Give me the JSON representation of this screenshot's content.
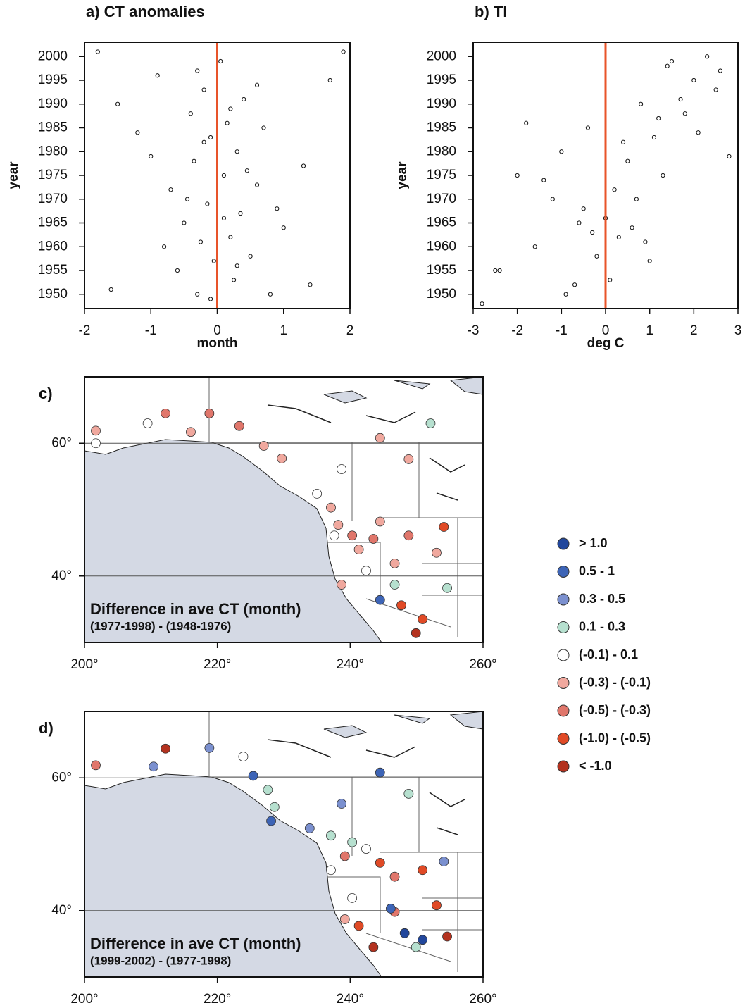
{
  "chart_data": [
    {
      "type": "scatter",
      "title": "a) CT anomalies",
      "xlabel": "month",
      "ylabel": "year",
      "xlim": [
        -2,
        2
      ],
      "ylim": [
        1947,
        2003
      ],
      "xticks": [
        -2,
        -1,
        0,
        1,
        2
      ],
      "yticks": [
        1950,
        1955,
        1960,
        1965,
        1970,
        1975,
        1980,
        1985,
        1990,
        1995,
        2000
      ],
      "ref_line": {
        "x": 0,
        "color": "#e8542a"
      },
      "x": [
        -1.8,
        -1.5,
        -1.2,
        -0.9,
        -0.7,
        -0.6,
        -0.5,
        -0.4,
        -0.35,
        -0.3,
        -0.25,
        -0.2,
        -0.15,
        -0.1,
        -0.05,
        0.05,
        0.1,
        0.15,
        0.2,
        0.25,
        0.3,
        0.35,
        0.4,
        0.5,
        0.6,
        0.7,
        0.8,
        1.0,
        1.3,
        1.7,
        -1.6,
        -1.0,
        -0.8,
        -0.45,
        -0.3,
        -0.2,
        -0.1,
        0.1,
        0.2,
        0.3,
        0.45,
        0.6,
        0.9,
        1.4,
        1.9
      ],
      "y": [
        2001,
        1990,
        1984,
        1996,
        1972,
        1955,
        1965,
        1988,
        1978,
        1950,
        1961,
        1993,
        1969,
        1983,
        1957,
        1999,
        1975,
        1986,
        1962,
        1953,
        1980,
        1967,
        1991,
        1958,
        1973,
        1985,
        1950,
        1964,
        1977,
        1995,
        1951,
        1979,
        1960,
        1970,
        1997,
        1982,
        1949,
        1966,
        1989,
        1956,
        1976,
        1994,
        1968,
        1952,
        2001
      ]
    },
    {
      "type": "scatter",
      "title": "b) TI",
      "xlabel": "deg C",
      "ylabel": "year",
      "xlim": [
        -3,
        3
      ],
      "ylim": [
        1947,
        2003
      ],
      "xticks": [
        -3,
        -2,
        -1,
        0,
        1,
        2,
        3
      ],
      "yticks": [
        1950,
        1955,
        1960,
        1965,
        1970,
        1975,
        1980,
        1985,
        1990,
        1995,
        2000
      ],
      "ref_line": {
        "x": 0,
        "color": "#e8542a"
      },
      "x": [
        -2.8,
        -2.4,
        -2.0,
        -1.6,
        -1.2,
        -0.9,
        -0.6,
        -0.4,
        -0.2,
        0.1,
        0.3,
        0.5,
        0.8,
        1.1,
        1.5,
        2.0,
        2.5,
        -2.5,
        -1.8,
        -1.0,
        -0.5,
        0.2,
        0.6,
        1.0,
        1.4,
        1.8,
        2.3,
        2.8,
        -1.4,
        -0.7,
        0.0,
        0.4,
        0.9,
        1.3,
        1.7,
        2.1,
        2.6,
        -0.3,
        0.7,
        1.2
      ],
      "y": [
        1948,
        1955,
        1975,
        1960,
        1970,
        1950,
        1965,
        1985,
        1958,
        1953,
        1962,
        1978,
        1990,
        1983,
        1999,
        1995,
        1993,
        1955,
        1986,
        1980,
        1968,
        1972,
        1964,
        1957,
        1998,
        1988,
        2000,
        1979,
        1974,
        1952,
        1966,
        1982,
        1961,
        1975,
        1991,
        1984,
        1997,
        1963,
        1970,
        1987
      ]
    },
    {
      "type": "map",
      "panel": "c)",
      "title": "Difference in ave CT (month)",
      "subtitle": "(1977-1998) - (1948-1976)",
      "xlim": [
        200,
        260
      ],
      "ylim": [
        30,
        70
      ],
      "xticks": [
        {
          "value": 200,
          "label": "200°"
        },
        {
          "value": 220,
          "label": "220°"
        },
        {
          "value": 240,
          "label": "240°"
        },
        {
          "value": 260,
          "label": "260°"
        }
      ],
      "yticks": [
        {
          "value": 40,
          "label": "40°"
        },
        {
          "value": 60,
          "label": "60°"
        }
      ],
      "x": [
        201.7,
        201.7,
        209.5,
        212.2,
        218.8,
        216.0,
        223.3,
        227.0,
        229.7,
        238.7,
        237.1,
        238.2,
        240.3,
        241.3,
        244.5,
        246.7,
        248.8,
        252.1,
        254.1,
        237.6,
        242.4,
        238.7,
        244.5,
        247.7,
        249.9,
        250.9,
        254.6,
        253.0,
        248.8,
        244.5,
        235.0,
        246.7,
        243.5
      ],
      "y": [
        61.9,
        60.0,
        63.0,
        64.5,
        64.5,
        61.7,
        62.6,
        59.6,
        57.7,
        56.1,
        50.3,
        47.7,
        46.1,
        44.0,
        48.2,
        41.9,
        57.6,
        63.0,
        47.4,
        46.1,
        40.8,
        38.7,
        36.4,
        35.6,
        31.4,
        33.5,
        38.2,
        43.5,
        46.1,
        60.8,
        52.4,
        38.7,
        45.6
      ],
      "class": [
        5,
        4,
        4,
        6,
        6,
        5,
        6,
        5,
        5,
        4,
        5,
        5,
        6,
        5,
        5,
        5,
        5,
        3,
        7,
        4,
        4,
        5,
        1,
        7,
        8,
        7,
        3,
        5,
        6,
        5,
        4,
        3,
        6
      ]
    },
    {
      "type": "map",
      "panel": "d)",
      "title": "Difference in ave CT (month)",
      "subtitle": "(1999-2002) - (1977-1998)",
      "xlim": [
        200,
        260
      ],
      "ylim": [
        30,
        70
      ],
      "xticks": [
        {
          "value": 200,
          "label": "200°"
        },
        {
          "value": 220,
          "label": "220°"
        },
        {
          "value": 240,
          "label": "240°"
        },
        {
          "value": 260,
          "label": "260°"
        }
      ],
      "yticks": [
        {
          "value": 40,
          "label": "40°"
        },
        {
          "value": 60,
          "label": "60°"
        }
      ],
      "x": [
        201.7,
        210.4,
        212.2,
        218.8,
        223.9,
        225.4,
        227.6,
        228.6,
        228.1,
        233.9,
        238.7,
        244.5,
        248.8,
        237.1,
        240.3,
        242.4,
        239.2,
        244.5,
        246.7,
        250.9,
        254.1,
        240.3,
        241.3,
        246.7,
        246.1,
        248.2,
        250.9,
        254.6,
        253.0,
        249.9,
        237.1,
        239.2,
        243.5
      ],
      "y": [
        61.9,
        61.7,
        64.4,
        64.5,
        63.2,
        60.3,
        58.2,
        55.6,
        53.5,
        52.4,
        56.1,
        60.8,
        57.6,
        51.3,
        50.3,
        49.3,
        48.2,
        47.2,
        45.1,
        46.1,
        47.4,
        41.9,
        37.7,
        39.8,
        40.3,
        36.6,
        35.6,
        36.1,
        40.8,
        34.5,
        46.1,
        38.7,
        34.5
      ],
      "class": [
        6,
        2,
        8,
        2,
        4,
        1,
        3,
        3,
        1,
        2,
        2,
        1,
        3,
        3,
        3,
        4,
        6,
        7,
        6,
        7,
        2,
        4,
        7,
        6,
        1,
        0,
        0,
        8,
        7,
        3,
        4,
        5,
        8
      ]
    }
  ],
  "legend": [
    {
      "name": "> 1.0",
      "color": "#22479c"
    },
    {
      "name": "0.5 - 1",
      "color": "#3d64b6"
    },
    {
      "name": "0.3 - 0.5",
      "color": "#7b90cf"
    },
    {
      "name": "0.1 - 0.3",
      "color": "#b6e0cf"
    },
    {
      "name": "(-0.1) - 0.1",
      "color": "#ffffff"
    },
    {
      "name": "(-0.3) - (-0.1)",
      "color": "#f0a89e"
    },
    {
      "name": "(-0.5) - (-0.3)",
      "color": "#e0766b"
    },
    {
      "name": "(-1.0) - (-0.5)",
      "color": "#e04a26"
    },
    {
      "name": "< -1.0",
      "color": "#b3321f"
    }
  ]
}
